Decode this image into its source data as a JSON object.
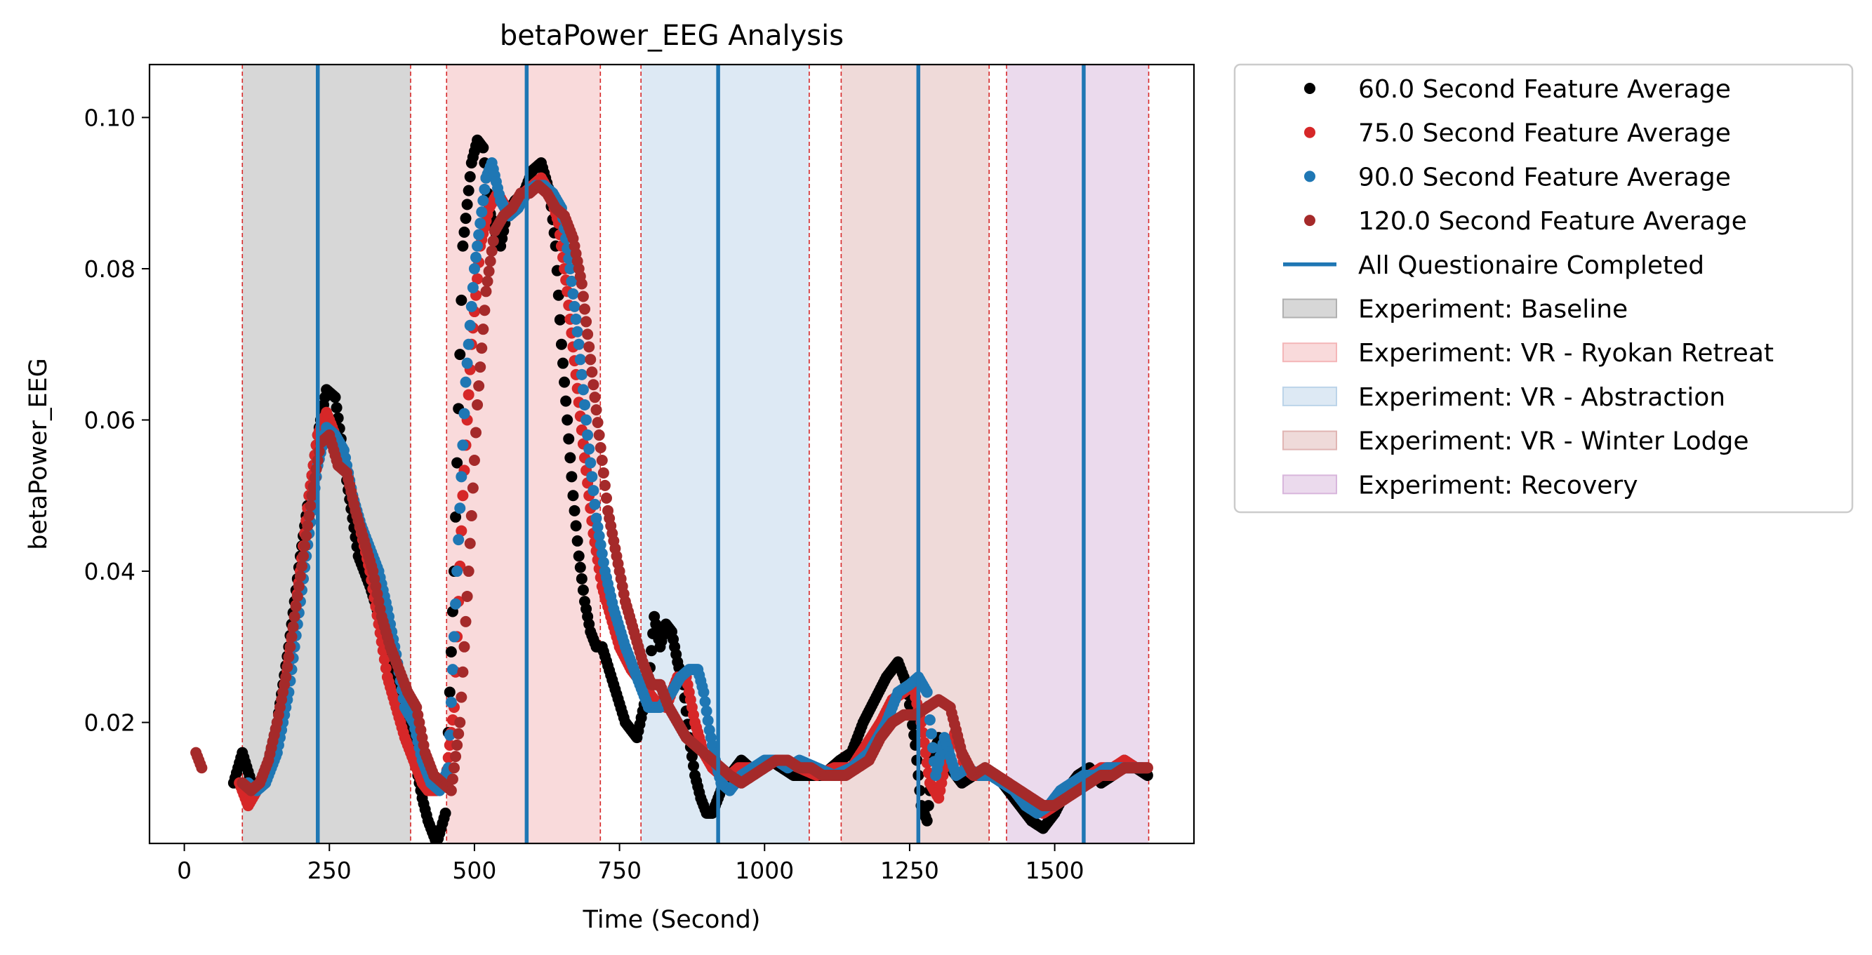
{
  "chart_data": {
    "type": "scatter",
    "title": "betaPower_EEG Analysis",
    "xlabel": "Time (Second)",
    "ylabel": "betaPower_EEG",
    "xlim": [
      -60,
      1740
    ],
    "ylim": [
      0.004,
      0.107
    ],
    "xticks": [
      0,
      250,
      500,
      750,
      1000,
      1250,
      1500
    ],
    "xtick_labels": [
      "0",
      "250",
      "500",
      "750",
      "1000",
      "1250",
      "1500"
    ],
    "yticks": [
      0.02,
      0.04,
      0.06,
      0.08,
      0.1
    ],
    "ytick_labels": [
      "0.02",
      "0.04",
      "0.06",
      "0.08",
      "0.10"
    ],
    "grid": false,
    "legend_placement": "outside-right",
    "series": [
      {
        "name": "60.0 Second Feature Average",
        "color": "#000000",
        "x": [
          85,
          100,
          120,
          140,
          160,
          180,
          200,
          215,
          230,
          245,
          260,
          280,
          300,
          320,
          340,
          360,
          380,
          395,
          410,
          420,
          435,
          450,
          465,
          480,
          495,
          505,
          515,
          525,
          535,
          545,
          555,
          570,
          585,
          600,
          615,
          630,
          640,
          650,
          660,
          670,
          680,
          690,
          700,
          710,
          720,
          740,
          760,
          780,
          800,
          810,
          820,
          830,
          840,
          850,
          860,
          870,
          880,
          890,
          900,
          910,
          920,
          930,
          940,
          950,
          960,
          975,
          990,
          1010,
          1030,
          1050,
          1070,
          1100,
          1130,
          1150,
          1170,
          1190,
          1210,
          1230,
          1245,
          1260,
          1270,
          1280,
          1290,
          1300,
          1310,
          1320,
          1340,
          1360,
          1380,
          1400,
          1420,
          1440,
          1460,
          1480,
          1500,
          1520,
          1540,
          1560,
          1580,
          1600,
          1620,
          1640,
          1660
        ],
        "y": [
          0.012,
          0.016,
          0.011,
          0.013,
          0.02,
          0.03,
          0.042,
          0.05,
          0.058,
          0.064,
          0.063,
          0.052,
          0.042,
          0.038,
          0.033,
          0.025,
          0.02,
          0.016,
          0.01,
          0.007,
          0.004,
          0.008,
          0.04,
          0.083,
          0.094,
          0.097,
          0.096,
          0.088,
          0.085,
          0.083,
          0.087,
          0.089,
          0.09,
          0.093,
          0.094,
          0.09,
          0.083,
          0.07,
          0.06,
          0.05,
          0.042,
          0.036,
          0.032,
          0.03,
          0.03,
          0.025,
          0.02,
          0.018,
          0.025,
          0.034,
          0.03,
          0.033,
          0.032,
          0.028,
          0.025,
          0.018,
          0.013,
          0.01,
          0.008,
          0.008,
          0.01,
          0.012,
          0.013,
          0.014,
          0.015,
          0.014,
          0.014,
          0.015,
          0.014,
          0.013,
          0.013,
          0.013,
          0.015,
          0.016,
          0.02,
          0.023,
          0.026,
          0.028,
          0.025,
          0.017,
          0.009,
          0.007,
          0.015,
          0.018,
          0.016,
          0.014,
          0.012,
          0.013,
          0.014,
          0.013,
          0.011,
          0.009,
          0.007,
          0.006,
          0.008,
          0.011,
          0.013,
          0.014,
          0.012,
          0.013,
          0.015,
          0.014,
          0.013
        ]
      },
      {
        "name": "75.0 Second Feature Average",
        "color": "#d62728",
        "x": [
          95,
          110,
          125,
          140,
          160,
          180,
          200,
          215,
          230,
          245,
          260,
          275,
          290,
          305,
          320,
          335,
          350,
          365,
          380,
          395,
          410,
          420,
          435,
          450,
          465,
          480,
          495,
          510,
          525,
          540,
          555,
          570,
          585,
          600,
          615,
          630,
          645,
          660,
          675,
          690,
          705,
          720,
          735,
          750,
          770,
          790,
          810,
          830,
          850,
          865,
          880,
          895,
          910,
          925,
          940,
          955,
          970,
          990,
          1010,
          1030,
          1060,
          1090,
          1120,
          1150,
          1175,
          1200,
          1220,
          1240,
          1255,
          1270,
          1285,
          1300,
          1315,
          1330,
          1345,
          1360,
          1380,
          1400,
          1420,
          1440,
          1460,
          1480,
          1500,
          1520,
          1540,
          1560,
          1580,
          1600,
          1620,
          1640,
          1660
        ],
        "y": [
          0.012,
          0.009,
          0.011,
          0.013,
          0.018,
          0.028,
          0.04,
          0.05,
          0.058,
          0.061,
          0.058,
          0.055,
          0.05,
          0.045,
          0.04,
          0.033,
          0.026,
          0.022,
          0.018,
          0.015,
          0.012,
          0.011,
          0.011,
          0.012,
          0.022,
          0.05,
          0.07,
          0.083,
          0.088,
          0.09,
          0.088,
          0.088,
          0.09,
          0.091,
          0.092,
          0.09,
          0.086,
          0.077,
          0.066,
          0.055,
          0.045,
          0.038,
          0.034,
          0.03,
          0.027,
          0.025,
          0.023,
          0.022,
          0.026,
          0.026,
          0.02,
          0.016,
          0.014,
          0.013,
          0.013,
          0.014,
          0.014,
          0.014,
          0.015,
          0.015,
          0.014,
          0.013,
          0.014,
          0.014,
          0.017,
          0.02,
          0.023,
          0.024,
          0.025,
          0.02,
          0.012,
          0.01,
          0.016,
          0.019,
          0.014,
          0.013,
          0.013,
          0.013,
          0.012,
          0.01,
          0.009,
          0.008,
          0.009,
          0.011,
          0.012,
          0.013,
          0.014,
          0.014,
          0.015,
          0.014,
          0.014
        ]
      },
      {
        "name": "90.0 Second Feature Average",
        "color": "#1f77b4",
        "x": [
          110,
          125,
          140,
          160,
          180,
          200,
          215,
          230,
          245,
          260,
          275,
          290,
          305,
          320,
          335,
          350,
          365,
          380,
          395,
          410,
          425,
          440,
          455,
          470,
          485,
          500,
          510,
          520,
          530,
          545,
          560,
          575,
          590,
          605,
          620,
          635,
          650,
          665,
          680,
          695,
          710,
          725,
          740,
          760,
          780,
          800,
          820,
          840,
          855,
          870,
          885,
          895,
          905,
          915,
          925,
          940,
          960,
          980,
          1000,
          1020,
          1040,
          1060,
          1090,
          1120,
          1150,
          1180,
          1210,
          1230,
          1250,
          1265,
          1280,
          1295,
          1310,
          1330,
          1350,
          1370,
          1390,
          1410,
          1430,
          1450,
          1470,
          1490,
          1510,
          1530,
          1550,
          1570,
          1590,
          1610,
          1630,
          1650
        ],
        "y": [
          0.012,
          0.011,
          0.012,
          0.016,
          0.024,
          0.036,
          0.045,
          0.054,
          0.059,
          0.058,
          0.056,
          0.05,
          0.046,
          0.043,
          0.04,
          0.035,
          0.029,
          0.022,
          0.02,
          0.015,
          0.012,
          0.011,
          0.014,
          0.04,
          0.065,
          0.08,
          0.086,
          0.092,
          0.094,
          0.089,
          0.087,
          0.088,
          0.09,
          0.091,
          0.091,
          0.09,
          0.088,
          0.08,
          0.07,
          0.058,
          0.047,
          0.04,
          0.035,
          0.03,
          0.026,
          0.022,
          0.022,
          0.024,
          0.026,
          0.027,
          0.027,
          0.024,
          0.019,
          0.015,
          0.012,
          0.011,
          0.013,
          0.014,
          0.015,
          0.015,
          0.014,
          0.015,
          0.014,
          0.013,
          0.014,
          0.016,
          0.02,
          0.024,
          0.025,
          0.026,
          0.024,
          0.013,
          0.018,
          0.013,
          0.014,
          0.013,
          0.013,
          0.012,
          0.011,
          0.009,
          0.008,
          0.009,
          0.011,
          0.012,
          0.013,
          0.013,
          0.014,
          0.014,
          0.014,
          0.014
        ]
      },
      {
        "name": "120.0 Second Feature Average",
        "color": "#a52a2a",
        "x": [
          20,
          25,
          30,
          100,
          115,
          130,
          145,
          160,
          175,
          190,
          205,
          220,
          235,
          250,
          265,
          280,
          295,
          310,
          325,
          340,
          355,
          370,
          385,
          400,
          415,
          430,
          445,
          460,
          475,
          490,
          505,
          520,
          535,
          550,
          565,
          580,
          595,
          610,
          625,
          640,
          655,
          670,
          685,
          700,
          715,
          730,
          745,
          760,
          775,
          790,
          805,
          820,
          835,
          850,
          865,
          880,
          895,
          910,
          925,
          940,
          960,
          980,
          1000,
          1020,
          1040,
          1060,
          1080,
          1100,
          1120,
          1140,
          1160,
          1180,
          1200,
          1220,
          1240,
          1260,
          1280,
          1300,
          1320,
          1340,
          1360,
          1380,
          1400,
          1420,
          1440,
          1460,
          1480,
          1500,
          1520,
          1540,
          1560,
          1580,
          1600,
          1620,
          1640,
          1660
        ],
        "y": [
          0.016,
          0.015,
          0.014,
          0.012,
          0.011,
          0.012,
          0.015,
          0.02,
          0.026,
          0.034,
          0.042,
          0.05,
          0.057,
          0.058,
          0.054,
          0.053,
          0.048,
          0.044,
          0.04,
          0.034,
          0.03,
          0.027,
          0.024,
          0.022,
          0.016,
          0.013,
          0.012,
          0.011,
          0.02,
          0.04,
          0.062,
          0.077,
          0.085,
          0.087,
          0.088,
          0.09,
          0.09,
          0.091,
          0.09,
          0.088,
          0.087,
          0.084,
          0.078,
          0.068,
          0.058,
          0.048,
          0.042,
          0.036,
          0.032,
          0.028,
          0.025,
          0.025,
          0.022,
          0.02,
          0.018,
          0.017,
          0.016,
          0.015,
          0.014,
          0.013,
          0.012,
          0.013,
          0.014,
          0.015,
          0.015,
          0.014,
          0.014,
          0.013,
          0.013,
          0.013,
          0.014,
          0.015,
          0.018,
          0.02,
          0.021,
          0.021,
          0.022,
          0.023,
          0.022,
          0.016,
          0.013,
          0.014,
          0.013,
          0.012,
          0.011,
          0.01,
          0.009,
          0.009,
          0.01,
          0.011,
          0.012,
          0.013,
          0.013,
          0.014,
          0.014,
          0.014
        ]
      }
    ],
    "vertical_lines": {
      "name": "All Questionaire Completed",
      "color": "#1f77b4",
      "x": [
        230,
        590,
        920,
        1265,
        1550
      ]
    },
    "spans": [
      {
        "name": "Experiment: Baseline",
        "color": "#b0b0b0",
        "x0": 100,
        "x1": 390
      },
      {
        "name": "Experiment: VR - Ryokan Retreat",
        "color": "#f4b6b8",
        "x0": 452,
        "x1": 717
      },
      {
        "name": "Experiment: VR - Abstraction",
        "color": "#bcd4e9",
        "x0": 787,
        "x1": 1077
      },
      {
        "name": "Experiment: VR - Winter Lodge",
        "color": "#e0b5b3",
        "x0": 1132,
        "x1": 1387
      },
      {
        "name": "Experiment: Recovery",
        "color": "#d8b6dc",
        "x0": 1417,
        "x1": 1662
      }
    ],
    "boundary_line_color": "#d62728"
  },
  "legend": {
    "entries": [
      {
        "label": "60.0 Second Feature Average",
        "kind": "marker",
        "color": "#000000"
      },
      {
        "label": "75.0 Second Feature Average",
        "kind": "marker",
        "color": "#d62728"
      },
      {
        "label": "90.0 Second Feature Average",
        "kind": "marker",
        "color": "#1f77b4"
      },
      {
        "label": "120.0 Second Feature Average",
        "kind": "marker",
        "color": "#a52a2a"
      },
      {
        "label": "All Questionaire Completed",
        "kind": "line",
        "color": "#1f77b4"
      },
      {
        "label": "Experiment: Baseline",
        "kind": "patch",
        "color": "#b0b0b0"
      },
      {
        "label": "Experiment: VR - Ryokan Retreat",
        "kind": "patch",
        "color": "#f4b6b8"
      },
      {
        "label": "Experiment: VR - Abstraction",
        "kind": "patch",
        "color": "#bcd4e9"
      },
      {
        "label": "Experiment: VR - Winter Lodge",
        "kind": "patch",
        "color": "#e0b5b3"
      },
      {
        "label": "Experiment: Recovery",
        "kind": "patch",
        "color": "#d8b6dc"
      }
    ]
  }
}
